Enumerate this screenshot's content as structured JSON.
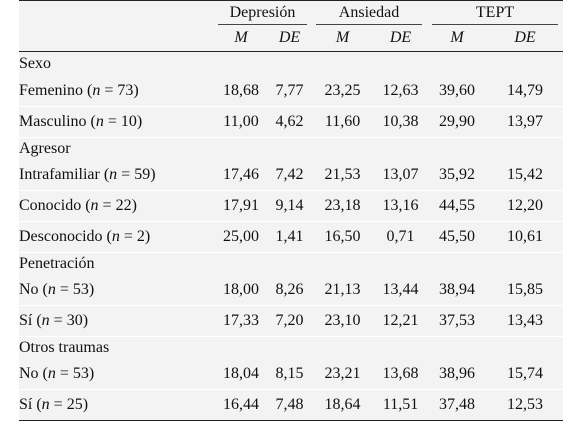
{
  "headers": {
    "groups": [
      "Depresión",
      "Ansiedad",
      "TEPT"
    ],
    "sub": [
      "M",
      "DE",
      "M",
      "DE",
      "M",
      "DE"
    ]
  },
  "sections": [
    {
      "title": "Sexo",
      "rows": [
        {
          "pre": "Femenino (",
          "n": "n",
          "post": " = 73)",
          "values": [
            "18,68",
            "7,77",
            "23,25",
            "12,63",
            "39,60",
            "14,79"
          ]
        },
        {
          "pre": "Masculino (",
          "n": "n",
          "post": " = 10)",
          "values": [
            "11,00",
            "4,62",
            "11,60",
            "10,38",
            "29,90",
            "13,97"
          ]
        }
      ]
    },
    {
      "title": "Agresor",
      "rows": [
        {
          "pre": "Intrafamiliar (",
          "n": "n",
          "post": " = 59)",
          "values": [
            "17,46",
            "7,42",
            "21,53",
            "13,07",
            "35,92",
            "15,42"
          ]
        },
        {
          "pre": "Conocido (",
          "n": "n",
          "post": " = 22)",
          "values": [
            "17,91",
            "9,14",
            "23,18",
            "13,16",
            "44,55",
            "12,20"
          ]
        },
        {
          "pre": "Desconocido (",
          "n": "n",
          "post": " = 2)",
          "values": [
            "25,00",
            "1,41",
            "16,50",
            "0,71",
            "45,50",
            "10,61"
          ]
        }
      ]
    },
    {
      "title": "Penetración",
      "rows": [
        {
          "pre": "No (",
          "n": "n",
          "post": " = 53)",
          "values": [
            "18,00",
            "8,26",
            "21,13",
            "13,44",
            "38,94",
            "15,85"
          ]
        },
        {
          "pre": "Sí (",
          "n": "n",
          "post": " = 30)",
          "values": [
            "17,33",
            "7,20",
            "23,10",
            "12,21",
            "37,53",
            "13,43"
          ]
        }
      ]
    },
    {
      "title": "Otros traumas",
      "rows": [
        {
          "pre": "No (",
          "n": "n",
          "post": " = 53)",
          "values": [
            "18,04",
            "8,15",
            "23,21",
            "13,68",
            "38,96",
            "15,74"
          ]
        },
        {
          "pre": "Sí (",
          "n": "n",
          "post": " = 25)",
          "values": [
            "16,44",
            "7,48",
            "18,64",
            "11,51",
            "37,48",
            "12,53"
          ]
        }
      ]
    }
  ],
  "colors": {
    "background": "#f3f3f3",
    "rule": "#222222",
    "row_separator": "#ffffff"
  }
}
